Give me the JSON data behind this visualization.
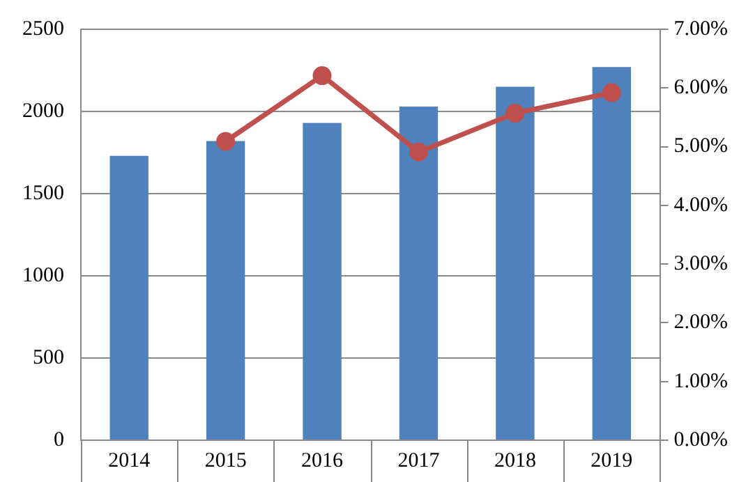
{
  "chart_data": {
    "type": "bar",
    "categories": [
      "2014",
      "2015",
      "2016",
      "2017",
      "2018",
      "2019"
    ],
    "series": [
      {
        "color": "#4f81bd",
        "values": [
          1730,
          1820,
          1930,
          2030,
          2150,
          2270
        ]
      },
      {
        "type": "line",
        "axis": "y2",
        "color": "#c0504d",
        "marker": "circle",
        "values": [
          null,
          5.09,
          6.21,
          4.91,
          5.57,
          5.92
        ]
      }
    ],
    "ylim": [
      0,
      2500
    ],
    "yticks": [
      0,
      500,
      1000,
      1500,
      2000,
      2500
    ],
    "y2lim": [
      0,
      7
    ],
    "y2ticks": [
      {
        "value": 0,
        "label": "0.00%"
      },
      {
        "value": 1,
        "label": "1.00%"
      },
      {
        "value": 2,
        "label": "2.00%"
      },
      {
        "value": 3,
        "label": "3.00%"
      },
      {
        "value": 4,
        "label": "4.00%"
      },
      {
        "value": 5,
        "label": "5.00%"
      },
      {
        "value": 6,
        "label": "6.00%"
      },
      {
        "value": 7,
        "label": "7.00%"
      }
    ],
    "grid": "y",
    "legend": false
  }
}
